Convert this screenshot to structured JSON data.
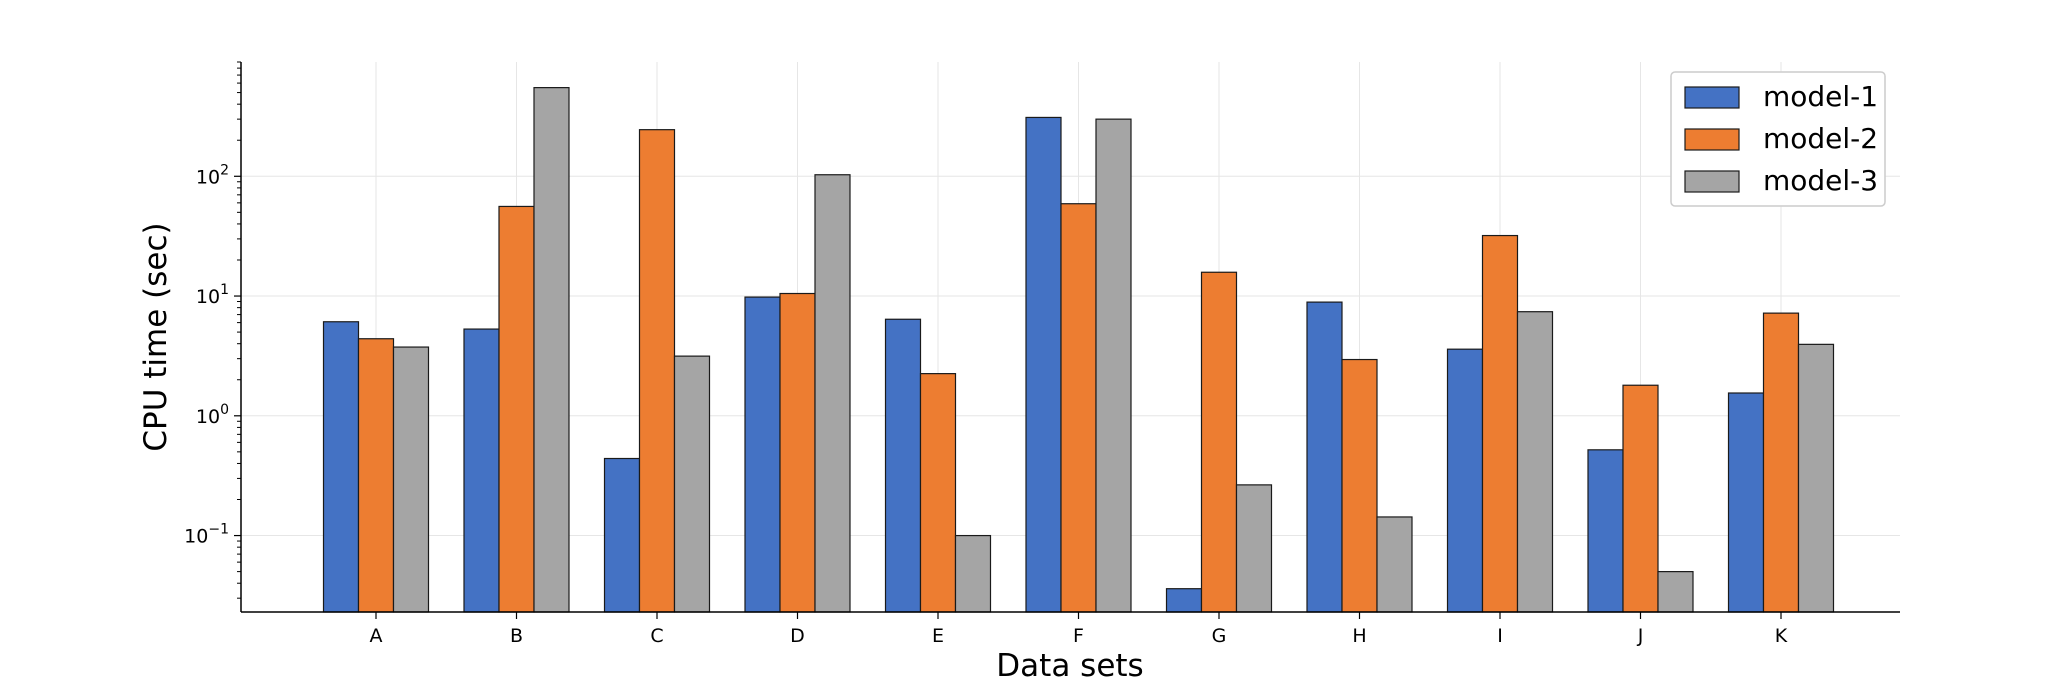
{
  "chart_data": {
    "type": "bar",
    "title": "",
    "xlabel": "Data sets",
    "ylabel": "CPU time (sec)",
    "yscale": "log",
    "ylim": [
      0.023,
      900
    ],
    "grid": true,
    "legend_position": "top-right",
    "categories": [
      "A",
      "B",
      "C",
      "D",
      "E",
      "F",
      "G",
      "H",
      "I",
      "J",
      "K"
    ],
    "y_ticks": [
      {
        "value": 0.1,
        "base": "10",
        "exp": "−1"
      },
      {
        "value": 1,
        "base": "10",
        "exp": "0"
      },
      {
        "value": 10,
        "base": "10",
        "exp": "1"
      },
      {
        "value": 100,
        "base": "10",
        "exp": "2"
      }
    ],
    "series": [
      {
        "name": "model-1",
        "color": "#4472c4",
        "values": [
          6.1,
          5.3,
          0.44,
          9.8,
          6.4,
          310,
          0.036,
          8.9,
          3.6,
          0.52,
          1.55
        ]
      },
      {
        "name": "model-2",
        "color": "#ed7d31",
        "values": [
          4.4,
          56,
          245,
          10.5,
          2.25,
          59,
          15.8,
          2.95,
          32,
          1.8,
          7.2
        ]
      },
      {
        "name": "model-3",
        "color": "#a5a5a5",
        "values": [
          3.75,
          550,
          3.15,
          103,
          0.1,
          300,
          0.265,
          0.143,
          7.4,
          0.05,
          3.95
        ]
      }
    ]
  }
}
